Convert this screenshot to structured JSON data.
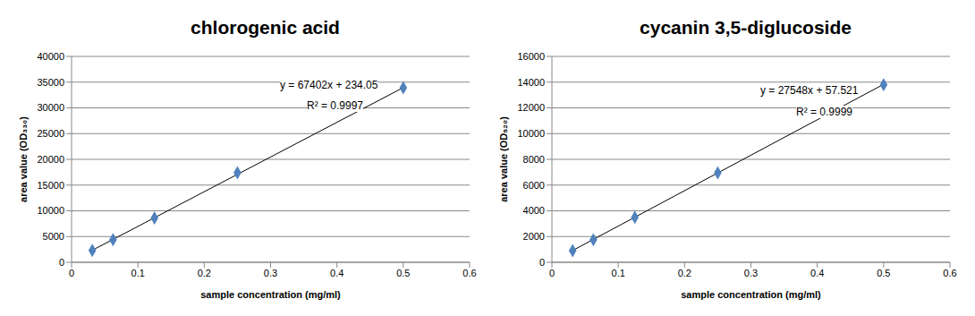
{
  "chart_data": [
    {
      "type": "scatter",
      "title": "chlorogenic acid",
      "x_label": "sample concentration (mg/ml)",
      "y_label": "area value (OD₃₃₀)",
      "x": [
        0.03125,
        0.0625,
        0.125,
        0.25,
        0.5
      ],
      "values": [
        2300,
        4400,
        8600,
        17400,
        33900
      ],
      "color": "#4f81bd",
      "marker": "diamond",
      "xlim": [
        0,
        0.6
      ],
      "xticks": [
        0,
        0.1,
        0.2,
        0.3,
        0.4,
        0.5,
        0.6
      ],
      "ylim": [
        0,
        40000
      ],
      "yticks": [
        0,
        5000,
        10000,
        15000,
        20000,
        25000,
        30000,
        35000,
        40000
      ],
      "grid": true,
      "trendline": {
        "slope": 67402,
        "intercept": 234.05
      },
      "annotations": [
        "y = 67402x + 234.05",
        "R² = 0.9997"
      ]
    },
    {
      "type": "scatter",
      "title": "cycanin 3,5-diglucoside",
      "x_label": "sample concentration (mg/ml)",
      "y_label": "area value (OD₅₂₀)",
      "x": [
        0.03125,
        0.0625,
        0.125,
        0.25,
        0.5
      ],
      "values": [
        900,
        1750,
        3500,
        6950,
        13800
      ],
      "color": "#4f81bd",
      "marker": "diamond",
      "xlim": [
        0,
        0.6
      ],
      "xticks": [
        0,
        0.1,
        0.2,
        0.3,
        0.4,
        0.5,
        0.6
      ],
      "ylim": [
        0,
        16000
      ],
      "yticks": [
        0,
        2000,
        4000,
        6000,
        8000,
        10000,
        12000,
        14000,
        16000
      ],
      "grid": true,
      "trendline": {
        "slope": 27548,
        "intercept": 57.521
      },
      "annotations": [
        "y = 27548x + 57.521",
        "R² = 0.9999"
      ]
    }
  ]
}
